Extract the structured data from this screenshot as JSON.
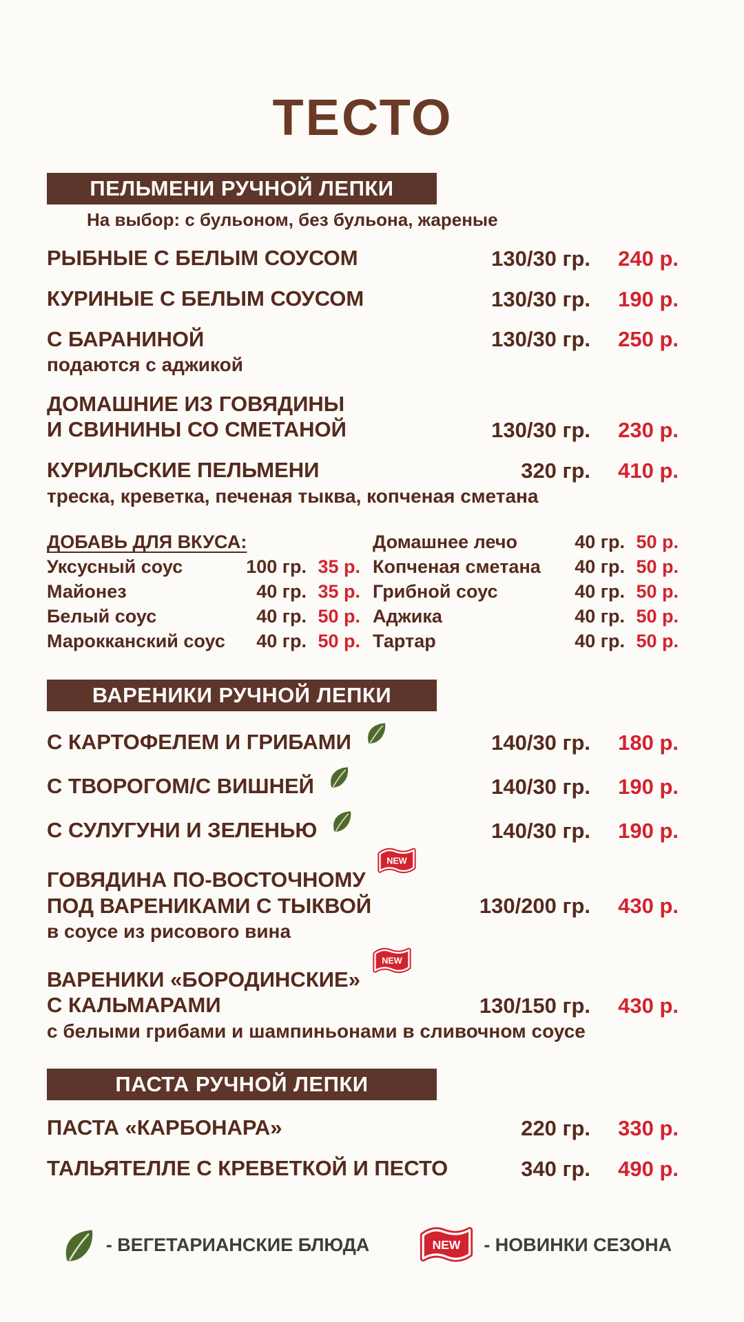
{
  "title": "ТЕСТО",
  "colors": {
    "brown_text": "#552a1d",
    "bar_brown": "#5d352a",
    "title_brown": "#6b3a26",
    "price_red": "#d2232e",
    "leaf_green": "#4e6b2d",
    "legend_gray": "#3d3d3d",
    "background": "#fcfbf8"
  },
  "sections": [
    {
      "header": "ПЕЛЬМЕНИ РУЧНОЙ ЛЕПКИ",
      "subtitle": "На выбор: с бульоном, без бульона, жареные",
      "items": [
        {
          "lines": [
            "РЫБНЫЕ С БЕЛЫМ СОУСОМ"
          ],
          "weight": "130/30 гр.",
          "price": "240 р."
        },
        {
          "lines": [
            "КУРИНЫЕ С БЕЛЫМ СОУСОМ"
          ],
          "weight": "130/30 гр.",
          "price": "190 р."
        },
        {
          "lines": [
            "С БАРАНИНОЙ"
          ],
          "desc": "подаются с аджикой",
          "weight": "130/30 гр.",
          "price": "250 р."
        },
        {
          "lines": [
            "ДОМАШНИЕ ИЗ ГОВЯДИНЫ",
            "И СВИНИНЫ СО СМЕТАНОЙ"
          ],
          "weight": "130/30 гр.",
          "price": "230 р."
        },
        {
          "lines": [
            "КУРИЛЬСКИЕ ПЕЛЬМЕНИ"
          ],
          "desc": "треска, креветка, печеная тыква, копченая сметана",
          "weight": "320 гр.",
          "price": "410 р."
        }
      ],
      "extras": {
        "heading": "ДОБАВЬ ДЛЯ ВКУСА:",
        "left": [
          {
            "name": "Уксусный соус",
            "weight": "100 гр.",
            "price": "35 р."
          },
          {
            "name": "Майонез",
            "weight": "40 гр.",
            "price": "35 р."
          },
          {
            "name": "Белый соус",
            "weight": "40 гр.",
            "price": "50 р."
          },
          {
            "name": "Марокканский соус",
            "weight": "40 гр.",
            "price": "50 р."
          }
        ],
        "right": [
          {
            "name": "Домашнее лечо",
            "weight": "40 гр.",
            "price": "50 р."
          },
          {
            "name": "Копченая сметана",
            "weight": "40 гр.",
            "price": "50 р."
          },
          {
            "name": "Грибной соус",
            "weight": "40 гр.",
            "price": "50 р."
          },
          {
            "name": "Аджика",
            "weight": "40 гр.",
            "price": "50 р."
          },
          {
            "name": "Тартар",
            "weight": "40 гр.",
            "price": "50 р."
          }
        ]
      }
    },
    {
      "header": "ВАРЕНИКИ РУЧНОЙ ЛЕПКИ",
      "items": [
        {
          "lines": [
            "С КАРТОФЕЛЕМ И ГРИБАМИ"
          ],
          "veg": true,
          "weight": "140/30 гр.",
          "price": "180 р."
        },
        {
          "lines": [
            "С ТВОРОГОМ/С ВИШНЕЙ"
          ],
          "veg": true,
          "weight": "140/30 гр.",
          "price": "190 р."
        },
        {
          "lines": [
            "С СУЛУГУНИ И ЗЕЛЕНЬЮ"
          ],
          "veg": true,
          "weight": "140/30 гр.",
          "price": "190 р."
        },
        {
          "lines": [
            "ГОВЯДИНА ПО-ВОСТОЧНОМУ",
            "ПОД ВАРЕНИКАМИ С ТЫКВОЙ"
          ],
          "new": true,
          "desc": "в соусе из рисового вина",
          "weight": "130/200 гр.",
          "price": "430 р."
        },
        {
          "lines": [
            "ВАРЕНИКИ «БОРОДИНСКИЕ»",
            "С КАЛЬМАРАМИ"
          ],
          "new": true,
          "desc": "с белыми грибами и шампиньонами в сливочном соусе",
          "weight": "130/150 гр.",
          "price": "430 р."
        }
      ]
    },
    {
      "header": "ПАСТА РУЧНОЙ ЛЕПКИ",
      "items": [
        {
          "lines": [
            "ПАСТА «КАРБОНАРА»"
          ],
          "weight": "220 гр.",
          "price": "330 р."
        },
        {
          "lines": [
            "ТАЛЬЯТЕЛЛЕ С КРЕВЕТКОЙ И ПЕСТО"
          ],
          "weight": "340 гр.",
          "price": "490 р."
        }
      ]
    }
  ],
  "legend": {
    "veg_label": "- ВЕГЕТАРИАНСКИЕ БЛЮДА",
    "new_label": "- НОВИНКИ СЕЗОНА",
    "new_badge_text": "NEW"
  }
}
